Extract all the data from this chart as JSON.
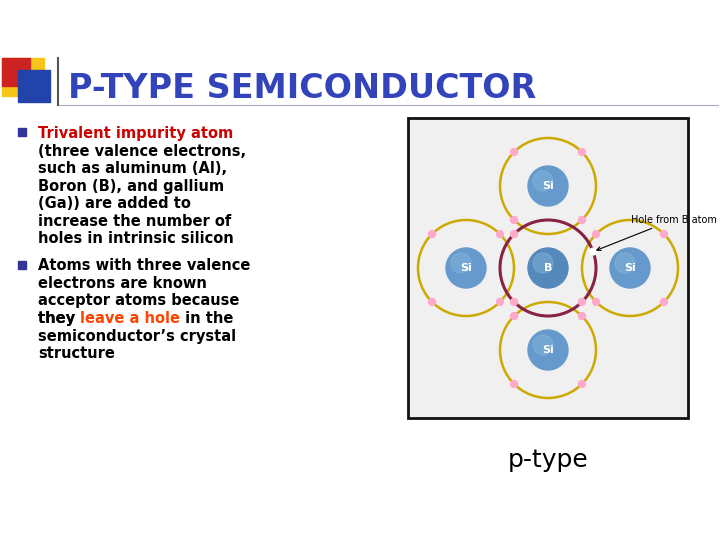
{
  "title": "P-TYPE SEMICONDUCTOR",
  "title_color": "#3344bb",
  "title_fontsize": 24,
  "bg_color": "#ffffff",
  "bullet1_bold": "Trivalent impurity atom",
  "bullet1_bold_color": "#cc0000",
  "bullet1_rest": "(three valence electrons,\nsuch as aluminum (Al),\nBoron (B), and gallium\n(Ga)) are added to\nincrease the number of\nholes in intrinsic silicon",
  "bullet2_line1": "Atoms with three valence",
  "bullet2_line2": "electrons are known",
  "bullet2_line3": "acceptor atoms because",
  "bullet2_line4_pre": "they ",
  "bullet2_highlight": "leave a hole",
  "bullet2_highlight_color": "#ff4400",
  "bullet2_line4_post": " in the",
  "bullet2_line5": "semiconductor’s crystal",
  "bullet2_line6": "structure",
  "bullet_color": "#000000",
  "bullet_marker_color": "#333399",
  "diagram_box_color": "#111111",
  "atom_si_color": "#6699cc",
  "atom_b_color": "#5588bb",
  "atom_orbit_color": "#ccaa00",
  "atom_orbit_b_color": "#882244",
  "electron_color": "#ffaacc",
  "ptype_label": "p-type",
  "ptype_fontsize": 18,
  "hole_label": "Hole from B atom",
  "hole_label_fontsize": 7,
  "text_fontsize": 10.5,
  "deco_yellow": "#f5c518",
  "deco_red": "#cc2222",
  "deco_blue": "#2244aa"
}
